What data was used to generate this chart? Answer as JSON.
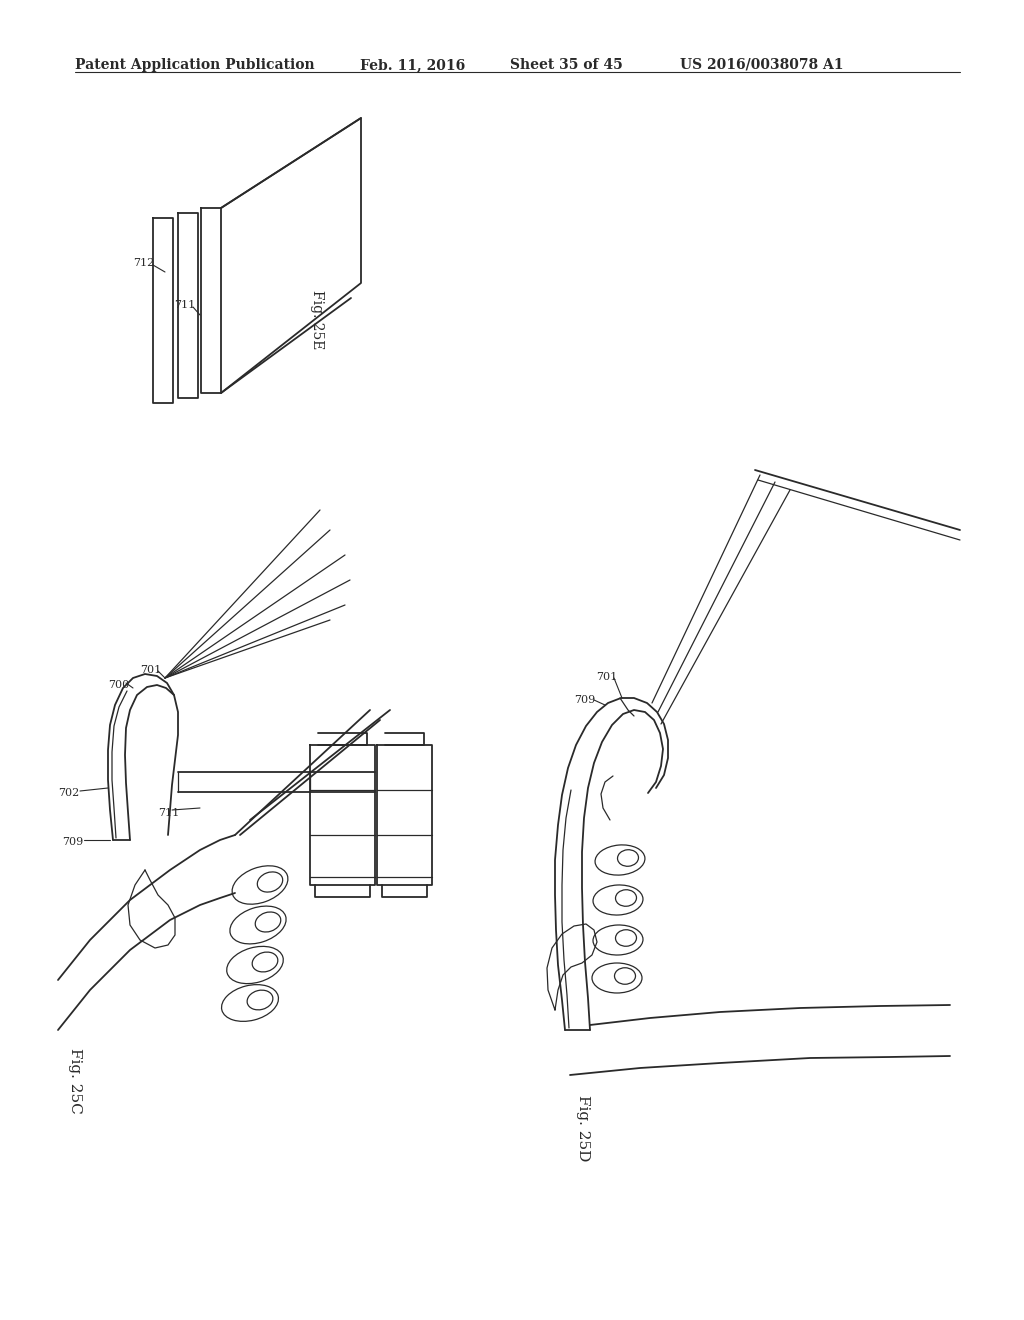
{
  "bg_color": "#ffffff",
  "line_color": "#2a2a2a",
  "header_text": "Patent Application Publication",
  "header_date": "Feb. 11, 2016",
  "header_sheet": "Sheet 35 of 45",
  "header_patent": "US 2016/0038078 A1",
  "fig_25e_label": "Fig. 25E",
  "fig_25c_label": "Fig. 25C",
  "fig_25d_label": "Fig. 25D"
}
